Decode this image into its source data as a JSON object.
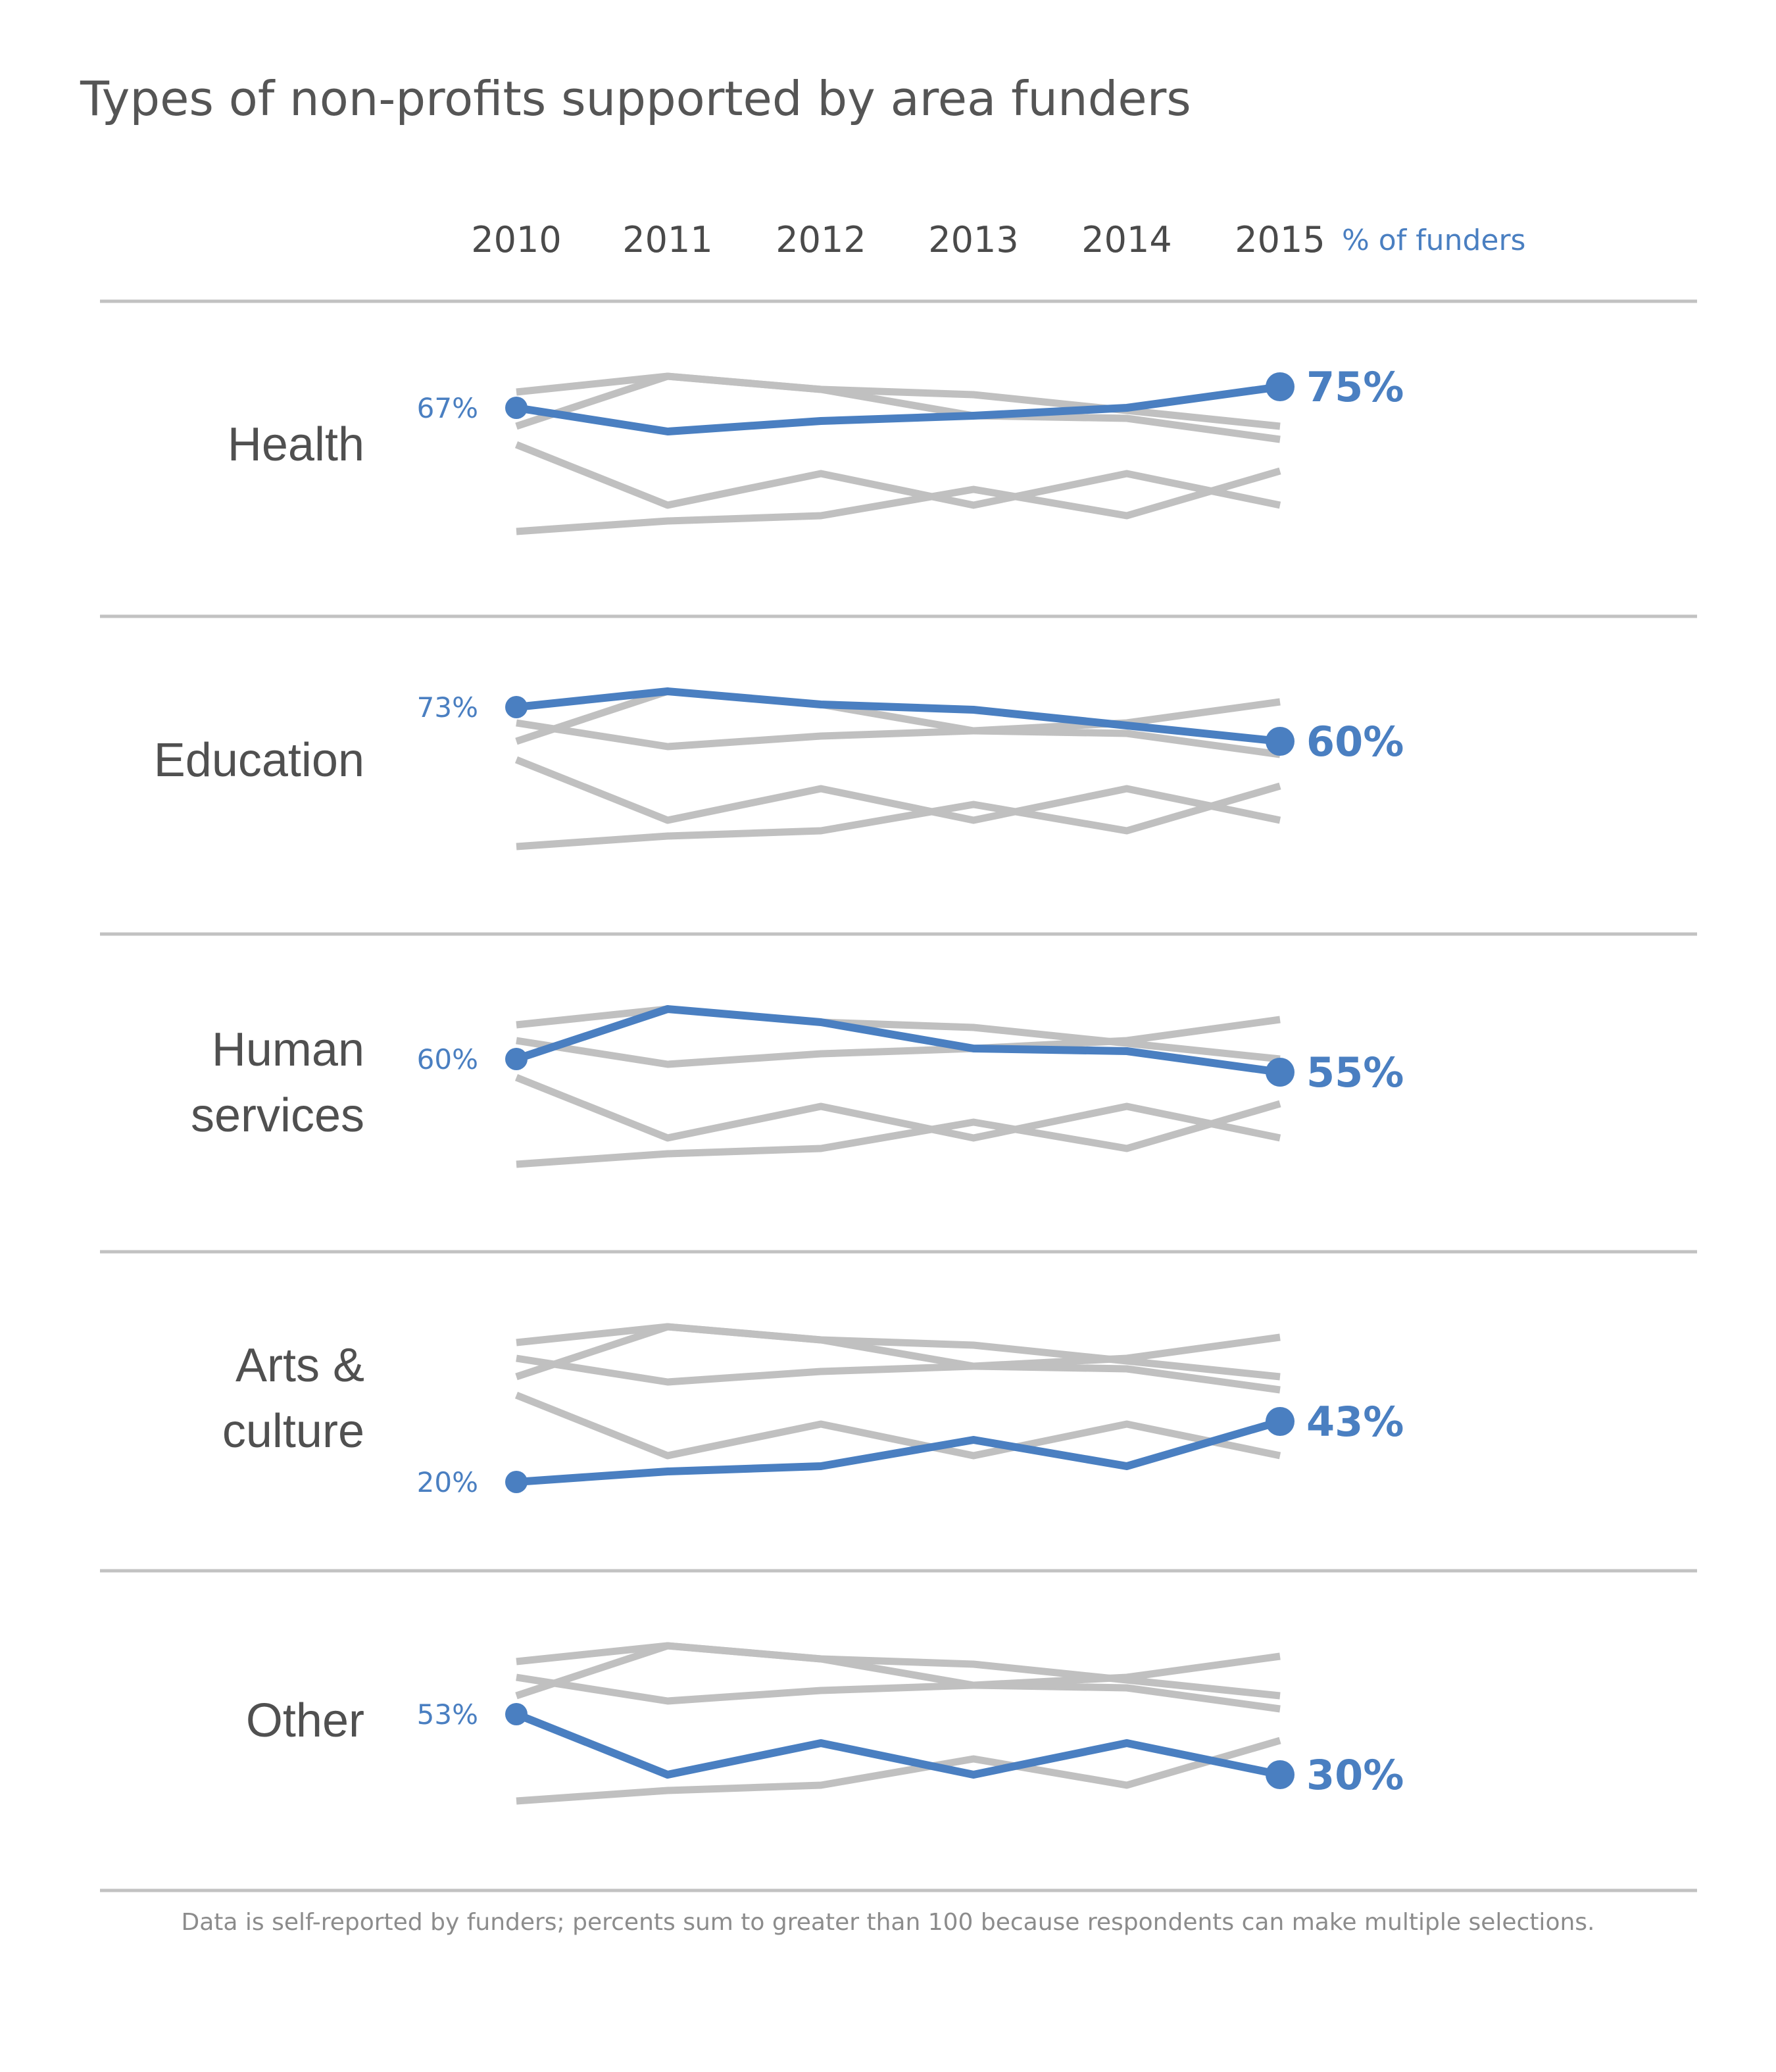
{
  "title": "Types of non-profits supported by area funders",
  "footnote": "Data is self-reported by funders; percents sum to greater than 100 because respondents can make multiple selections.",
  "colors": {
    "highlight": "#4a7fc1",
    "context": "#c0c0c0",
    "divider": "#c2c2c2",
    "text": "#555555",
    "note": "#8c8c8c"
  },
  "chart_data": {
    "type": "line",
    "layout": "small-multiples",
    "units_label": "% of funders",
    "x": [
      "2010",
      "2011",
      "2012",
      "2013",
      "2014",
      "2015"
    ],
    "ylim": [
      10,
      90
    ],
    "grid": false,
    "series": [
      {
        "name": "Health",
        "values": [
          67,
          58,
          62,
          64,
          67,
          75
        ],
        "start_label": "67%",
        "end_label": "75%"
      },
      {
        "name": "Education",
        "values": [
          73,
          79,
          74,
          72,
          66,
          60
        ],
        "start_label": "73%",
        "end_label": "60%"
      },
      {
        "name": "Human services",
        "values": [
          60,
          79,
          74,
          64,
          63,
          55
        ],
        "start_label": "60%",
        "end_label": "55%"
      },
      {
        "name": "Arts & culture",
        "values": [
          20,
          24,
          26,
          36,
          26,
          43
        ],
        "start_label": "20%",
        "end_label": "43%"
      },
      {
        "name": "Other",
        "values": [
          53,
          30,
          42,
          30,
          42,
          30
        ],
        "start_label": "53%",
        "end_label": "30%"
      }
    ]
  }
}
